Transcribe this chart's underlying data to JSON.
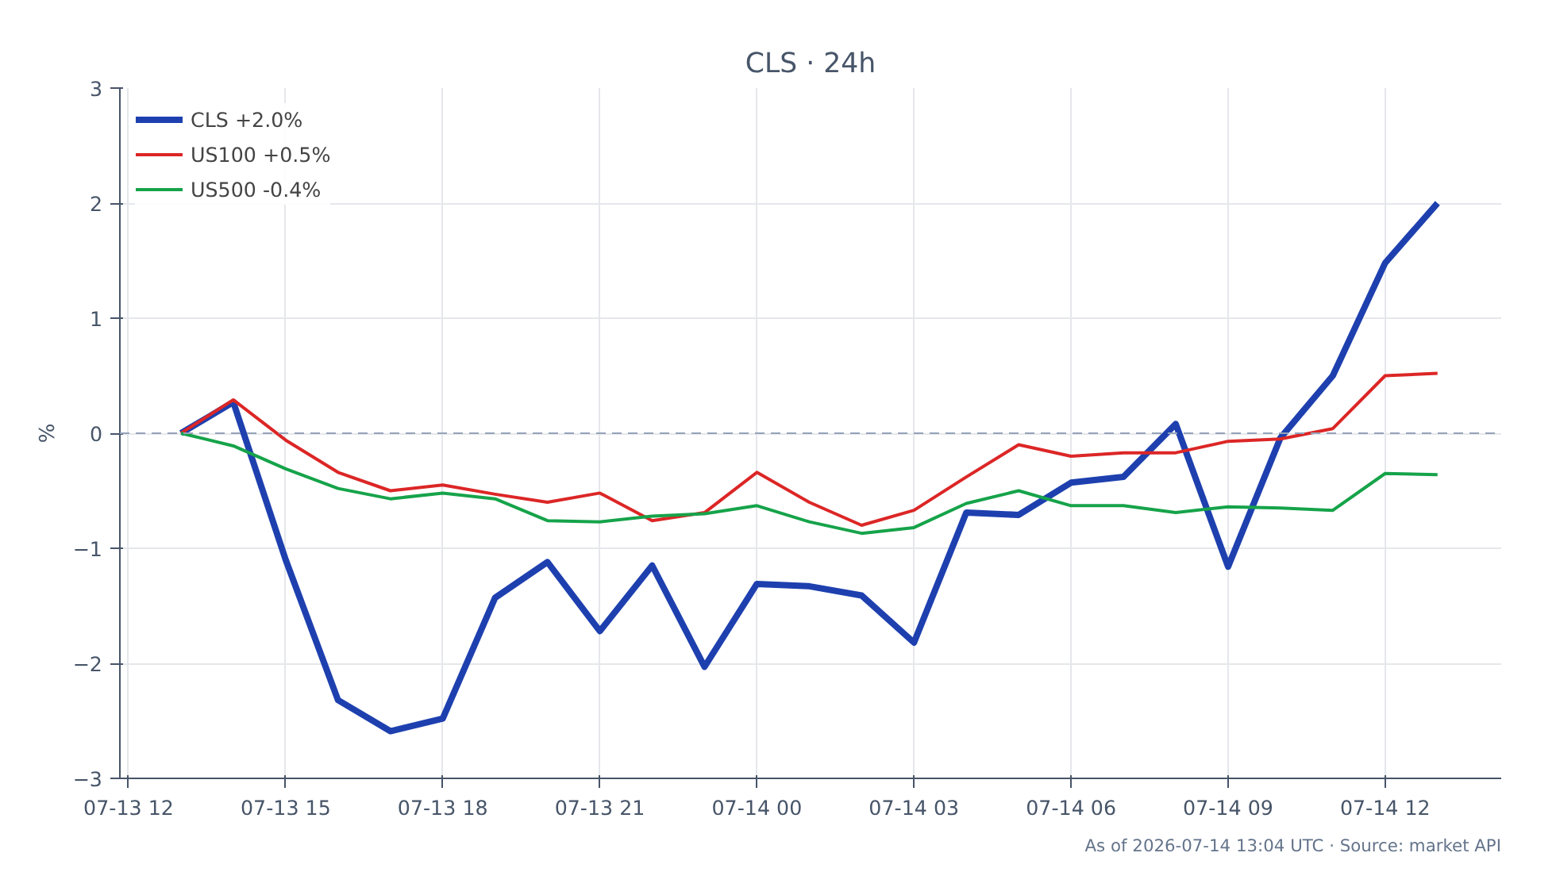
{
  "chart_data": {
    "type": "line",
    "title": "CLS · 24h",
    "ylabel": "%",
    "x": [
      "2026-07-13T13:00",
      "2026-07-13T14:00",
      "2026-07-13T15:00",
      "2026-07-13T16:00",
      "2026-07-13T17:00",
      "2026-07-13T18:00",
      "2026-07-13T19:00",
      "2026-07-13T20:00",
      "2026-07-13T21:00",
      "2026-07-13T22:00",
      "2026-07-13T23:00",
      "2026-07-14T00:00",
      "2026-07-14T01:00",
      "2026-07-14T02:00",
      "2026-07-14T03:00",
      "2026-07-14T04:00",
      "2026-07-14T05:00",
      "2026-07-14T06:00",
      "2026-07-14T07:00",
      "2026-07-14T08:00",
      "2026-07-14T09:00",
      "2026-07-14T10:00",
      "2026-07-14T11:00",
      "2026-07-14T12:00",
      "2026-07-14T13:00"
    ],
    "series": [
      {
        "name": "CLS +2.0%",
        "color": "#1e40af",
        "values": [
          0,
          0.27,
          -1.1,
          -2.32,
          -2.59,
          -2.48,
          -1.43,
          -1.12,
          -1.72,
          -1.15,
          -2.03,
          -1.31,
          -1.33,
          -1.41,
          -1.82,
          -0.69,
          -0.71,
          -0.43,
          -0.38,
          0.08,
          -1.16,
          -0.04,
          0.5,
          1.48,
          2.0
        ]
      },
      {
        "name": "US100 +0.5%",
        "color": "#dc2626",
        "values": [
          0,
          0.29,
          -0.06,
          -0.34,
          -0.5,
          -0.45,
          -0.53,
          -0.6,
          -0.52,
          -0.76,
          -0.69,
          -0.34,
          -0.6,
          -0.8,
          -0.67,
          -0.38,
          -0.1,
          -0.2,
          -0.17,
          -0.17,
          -0.07,
          -0.05,
          0.04,
          0.5,
          0.52
        ]
      },
      {
        "name": "US500 -0.4%",
        "color": "#16a34a",
        "values": [
          0,
          -0.11,
          -0.31,
          -0.48,
          -0.57,
          -0.52,
          -0.57,
          -0.76,
          -0.77,
          -0.72,
          -0.7,
          -0.63,
          -0.77,
          -0.87,
          -0.82,
          -0.61,
          -0.5,
          -0.63,
          -0.63,
          -0.69,
          -0.64,
          -0.65,
          -0.67,
          -0.35,
          -0.36
        ]
      }
    ],
    "xlim": [
      "2026-07-13T11:50",
      "2026-07-14T14:13"
    ],
    "xticks": [
      {
        "value": "2026-07-13T12:00",
        "label": "07-13 12"
      },
      {
        "value": "2026-07-13T15:00",
        "label": "07-13 15"
      },
      {
        "value": "2026-07-13T18:00",
        "label": "07-13 18"
      },
      {
        "value": "2026-07-13T21:00",
        "label": "07-13 21"
      },
      {
        "value": "2026-07-14T00:00",
        "label": "07-14 00"
      },
      {
        "value": "2026-07-14T03:00",
        "label": "07-14 03"
      },
      {
        "value": "2026-07-14T06:00",
        "label": "07-14 06"
      },
      {
        "value": "2026-07-14T09:00",
        "label": "07-14 09"
      },
      {
        "value": "2026-07-14T12:00",
        "label": "07-14 12"
      }
    ],
    "ylim": [
      -3,
      3
    ],
    "yticks": [
      {
        "value": -3,
        "label": "−3"
      },
      {
        "value": -2,
        "label": "−2"
      },
      {
        "value": -1,
        "label": "−1"
      },
      0,
      1,
      2,
      3
    ],
    "ref_lines": [
      {
        "axis": "y",
        "value": 0,
        "color": "#94a3b8",
        "line_style": "dashed"
      }
    ],
    "grid": true,
    "legend": "top left",
    "line_style": "solid",
    "marker": "none",
    "annotations": [
      "As of 2026-07-14 13:04 UTC · Source: market API"
    ]
  }
}
